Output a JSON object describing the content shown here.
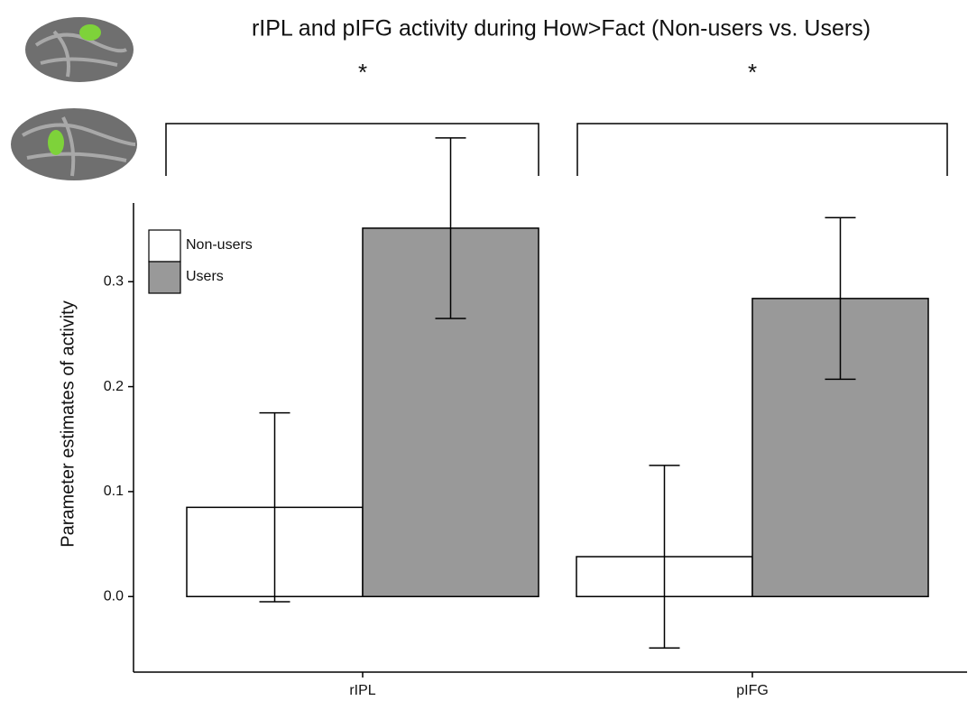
{
  "chart_data": {
    "type": "bar",
    "title": "rIPL and pIFG activity during How>Fact (Non-users vs. Users)",
    "annotations": [
      "*",
      "*"
    ],
    "y_label": "Parameter estimates of activity",
    "categories": [
      "rIPL",
      "pIFG"
    ],
    "series": [
      {
        "name": "Non-users",
        "color": "#ffffff",
        "values": [
          0.085,
          0.038
        ],
        "errors": [
          0.09,
          0.087
        ]
      },
      {
        "name": "Users",
        "color": "#999999",
        "values": [
          0.351,
          0.284
        ],
        "errors": [
          0.086,
          0.077
        ]
      }
    ],
    "ylim": [
      -0.072,
      0.375
    ],
    "yticks": [
      0.0,
      0.1,
      0.2,
      0.3
    ],
    "ytick_labels": [
      "0.0",
      "0.1",
      "0.2",
      "0.3"
    ],
    "legend": "top-left"
  }
}
